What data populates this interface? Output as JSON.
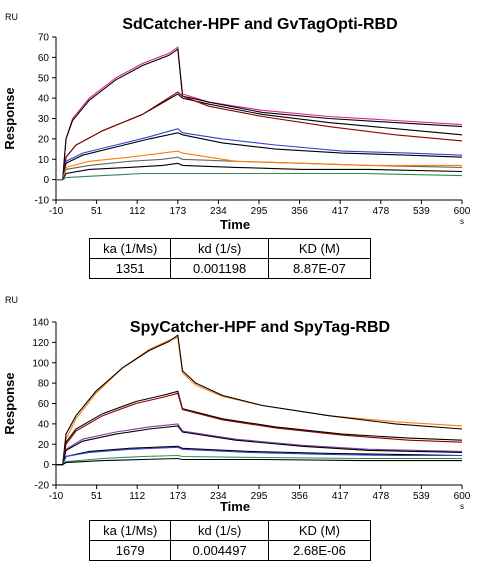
{
  "chart_data": [
    {
      "type": "line",
      "title": "SdCatcher-HPF and GvTagOpti-RBD",
      "unit_label": "RU",
      "xlabel": "Time",
      "x_unit": "s",
      "ylabel": "Response",
      "xlim": [
        -10,
        600
      ],
      "ylim": [
        -10,
        70
      ],
      "xticks": [
        "-10",
        "51",
        "112",
        "173",
        "234",
        "295",
        "356",
        "417",
        "478",
        "539",
        "600"
      ],
      "yticks": [
        "-10",
        "0",
        "10",
        "20",
        "30",
        "40",
        "50",
        "60",
        "70"
      ],
      "legend": "none",
      "series": [
        {
          "color": "#e0208c",
          "points": [
            [
              -10,
              0
            ],
            [
              0,
              0
            ],
            [
              5,
              20
            ],
            [
              15,
              30
            ],
            [
              40,
              40
            ],
            [
              80,
              50
            ],
            [
              120,
              57
            ],
            [
              160,
              62
            ],
            [
              173,
              65
            ],
            [
              180,
              42
            ],
            [
              220,
              38
            ],
            [
              300,
              34
            ],
            [
              400,
              31
            ],
            [
              500,
              29
            ],
            [
              600,
              27
            ]
          ]
        },
        {
          "color": "#000000",
          "points": [
            [
              -10,
              0
            ],
            [
              0,
              0
            ],
            [
              5,
              20
            ],
            [
              15,
              29
            ],
            [
              40,
              39
            ],
            [
              80,
              49
            ],
            [
              120,
              56
            ],
            [
              160,
              61
            ],
            [
              173,
              64
            ],
            [
              180,
              41
            ],
            [
              220,
              38
            ],
            [
              300,
              33
            ],
            [
              400,
              30
            ],
            [
              500,
              28
            ],
            [
              600,
              26
            ]
          ]
        },
        {
          "color": "#000000",
          "points": [
            [
              -10,
              0
            ],
            [
              0,
              0
            ],
            [
              5,
              11
            ],
            [
              20,
              17
            ],
            [
              60,
              24
            ],
            [
              120,
              32
            ],
            [
              173,
              42
            ],
            [
              180,
              40
            ],
            [
              220,
              37
            ],
            [
              300,
              32
            ],
            [
              400,
              28
            ],
            [
              500,
              25
            ],
            [
              600,
              22
            ]
          ]
        },
        {
          "color": "#8b0000",
          "points": [
            [
              -10,
              0
            ],
            [
              0,
              0
            ],
            [
              5,
              11
            ],
            [
              20,
              17
            ],
            [
              60,
              24
            ],
            [
              120,
              32
            ],
            [
              173,
              43
            ],
            [
              180,
              41
            ],
            [
              220,
              36
            ],
            [
              300,
              31
            ],
            [
              400,
              26
            ],
            [
              500,
              22
            ],
            [
              600,
              19
            ]
          ]
        },
        {
          "color": "#3344cc",
          "points": [
            [
              -10,
              0
            ],
            [
              0,
              0
            ],
            [
              5,
              9
            ],
            [
              30,
              13
            ],
            [
              80,
              17
            ],
            [
              130,
              21
            ],
            [
              173,
              25
            ],
            [
              180,
              23
            ],
            [
              240,
              20
            ],
            [
              320,
              17
            ],
            [
              420,
              14
            ],
            [
              520,
              13
            ],
            [
              600,
              12
            ]
          ]
        },
        {
          "color": "#000000",
          "points": [
            [
              -10,
              0
            ],
            [
              0,
              0
            ],
            [
              5,
              8
            ],
            [
              30,
              12
            ],
            [
              80,
              16
            ],
            [
              130,
              20
            ],
            [
              173,
              23
            ],
            [
              180,
              22
            ],
            [
              240,
              18
            ],
            [
              320,
              15
            ],
            [
              420,
              13
            ],
            [
              520,
              12
            ],
            [
              600,
              11
            ]
          ]
        },
        {
          "color": "#666666",
          "points": [
            [
              -10,
              0
            ],
            [
              0,
              0
            ],
            [
              5,
              5
            ],
            [
              40,
              7
            ],
            [
              100,
              9
            ],
            [
              150,
              10
            ],
            [
              173,
              11
            ],
            [
              180,
              10
            ],
            [
              260,
              9
            ],
            [
              360,
              8
            ],
            [
              460,
              7
            ],
            [
              600,
              6
            ]
          ]
        },
        {
          "color": "#ff7f00",
          "points": [
            [
              -10,
              0
            ],
            [
              0,
              0
            ],
            [
              5,
              6
            ],
            [
              40,
              9
            ],
            [
              100,
              11
            ],
            [
              150,
              13
            ],
            [
              173,
              14
            ],
            [
              180,
              13
            ],
            [
              260,
              9
            ],
            [
              360,
              8
            ],
            [
              460,
              7
            ],
            [
              600,
              7
            ]
          ]
        },
        {
          "color": "#000000",
          "points": [
            [
              -10,
              0
            ],
            [
              0,
              0
            ],
            [
              5,
              3
            ],
            [
              40,
              5
            ],
            [
              100,
              6
            ],
            [
              150,
              7
            ],
            [
              173,
              8
            ],
            [
              180,
              7
            ],
            [
              260,
              6
            ],
            [
              360,
              5
            ],
            [
              460,
              5
            ],
            [
              600,
              4
            ]
          ]
        },
        {
          "color": "#2e8b57",
          "points": [
            [
              -10,
              0
            ],
            [
              0,
              0
            ],
            [
              5,
              1
            ],
            [
              60,
              2
            ],
            [
              120,
              3
            ],
            [
              173,
              3
            ],
            [
              180,
              3
            ],
            [
              300,
              3
            ],
            [
              450,
              3
            ],
            [
              600,
              2
            ]
          ]
        }
      ],
      "table": {
        "headers": [
          "ka (1/Ms)",
          "kd (1/s)",
          "KD (M)"
        ],
        "values": [
          "1351",
          "0.001198",
          "8.87E-07"
        ]
      }
    },
    {
      "type": "line",
      "title": "SpyCatcher-HPF and SpyTag-RBD",
      "unit_label": "RU",
      "xlabel": "Time",
      "x_unit": "s",
      "ylabel": "Response",
      "xlim": [
        -10,
        600
      ],
      "ylim": [
        -20,
        140
      ],
      "xticks": [
        "-10",
        "51",
        "112",
        "173",
        "234",
        "295",
        "356",
        "417",
        "478",
        "539",
        "600"
      ],
      "yticks": [
        "-20",
        "0",
        "20",
        "40",
        "60",
        "80",
        "100",
        "120",
        "140"
      ],
      "legend": "none",
      "series": [
        {
          "color": "#ff7f00",
          "points": [
            [
              -10,
              0
            ],
            [
              0,
              0
            ],
            [
              5,
              25
            ],
            [
              20,
              45
            ],
            [
              50,
              70
            ],
            [
              90,
              95
            ],
            [
              130,
              113
            ],
            [
              160,
              122
            ],
            [
              173,
              125
            ],
            [
              180,
              90
            ],
            [
              200,
              78
            ],
            [
              240,
              67
            ],
            [
              300,
              58
            ],
            [
              400,
              48
            ],
            [
              500,
              42
            ],
            [
              600,
              38
            ]
          ]
        },
        {
          "color": "#000000",
          "points": [
            [
              -10,
              0
            ],
            [
              0,
              0
            ],
            [
              5,
              30
            ],
            [
              20,
              48
            ],
            [
              50,
              72
            ],
            [
              90,
              95
            ],
            [
              130,
              112
            ],
            [
              160,
              121
            ],
            [
              173,
              127
            ],
            [
              180,
              92
            ],
            [
              200,
              80
            ],
            [
              240,
              68
            ],
            [
              300,
              58
            ],
            [
              400,
              48
            ],
            [
              500,
              40
            ],
            [
              600,
              35
            ]
          ]
        },
        {
          "color": "#000000",
          "points": [
            [
              -10,
              0
            ],
            [
              0,
              0
            ],
            [
              5,
              22
            ],
            [
              20,
              35
            ],
            [
              60,
              50
            ],
            [
              110,
              62
            ],
            [
              150,
              68
            ],
            [
              173,
              72
            ],
            [
              180,
              55
            ],
            [
              240,
              45
            ],
            [
              320,
              37
            ],
            [
              420,
              30
            ],
            [
              520,
              26
            ],
            [
              600,
              24
            ]
          ]
        },
        {
          "color": "#8b0000",
          "points": [
            [
              -10,
              0
            ],
            [
              0,
              0
            ],
            [
              5,
              20
            ],
            [
              20,
              33
            ],
            [
              60,
              48
            ],
            [
              110,
              60
            ],
            [
              150,
              66
            ],
            [
              173,
              70
            ],
            [
              180,
              54
            ],
            [
              240,
              44
            ],
            [
              320,
              36
            ],
            [
              420,
              29
            ],
            [
              520,
              24
            ],
            [
              600,
              22
            ]
          ]
        },
        {
          "color": "#7b3fa0",
          "points": [
            [
              -10,
              0
            ],
            [
              0,
              0
            ],
            [
              5,
              15
            ],
            [
              30,
              25
            ],
            [
              80,
              32
            ],
            [
              130,
              37
            ],
            [
              173,
              40
            ],
            [
              180,
              33
            ],
            [
              260,
              25
            ],
            [
              360,
              19
            ],
            [
              460,
              15
            ],
            [
              600,
              13
            ]
          ]
        },
        {
          "color": "#000000",
          "points": [
            [
              -10,
              0
            ],
            [
              0,
              0
            ],
            [
              5,
              14
            ],
            [
              30,
              23
            ],
            [
              80,
              30
            ],
            [
              130,
              35
            ],
            [
              173,
              38
            ],
            [
              180,
              32
            ],
            [
              260,
              24
            ],
            [
              360,
              18
            ],
            [
              460,
              14
            ],
            [
              600,
              12
            ]
          ]
        },
        {
          "color": "#000000",
          "points": [
            [
              -10,
              0
            ],
            [
              0,
              0
            ],
            [
              5,
              8
            ],
            [
              40,
              13
            ],
            [
              100,
              16
            ],
            [
              173,
              18
            ],
            [
              180,
              16
            ],
            [
              280,
              13
            ],
            [
              400,
              11
            ],
            [
              500,
              10
            ],
            [
              600,
              9
            ]
          ]
        },
        {
          "color": "#3344cc",
          "points": [
            [
              -10,
              0
            ],
            [
              0,
              0
            ],
            [
              5,
              8
            ],
            [
              40,
              12
            ],
            [
              100,
              15
            ],
            [
              173,
              17
            ],
            [
              180,
              15
            ],
            [
              280,
              12
            ],
            [
              400,
              10
            ],
            [
              500,
              9
            ],
            [
              600,
              9
            ]
          ]
        },
        {
          "color": "#2e8b57",
          "points": [
            [
              -10,
              0
            ],
            [
              0,
              0
            ],
            [
              5,
              3
            ],
            [
              60,
              6
            ],
            [
              120,
              8
            ],
            [
              173,
              9
            ],
            [
              180,
              8
            ],
            [
              300,
              7
            ],
            [
              450,
              6
            ],
            [
              600,
              6
            ]
          ]
        },
        {
          "color": "#000000",
          "points": [
            [
              -10,
              0
            ],
            [
              0,
              0
            ],
            [
              5,
              2
            ],
            [
              60,
              4
            ],
            [
              120,
              5
            ],
            [
              173,
              6
            ],
            [
              180,
              5
            ],
            [
              300,
              5
            ],
            [
              450,
              4
            ],
            [
              600,
              4
            ]
          ]
        }
      ],
      "table": {
        "headers": [
          "ka (1/Ms)",
          "kd (1/s)",
          "KD (M)"
        ],
        "values": [
          "1679",
          "0.004497",
          "2.68E-06"
        ]
      }
    }
  ]
}
